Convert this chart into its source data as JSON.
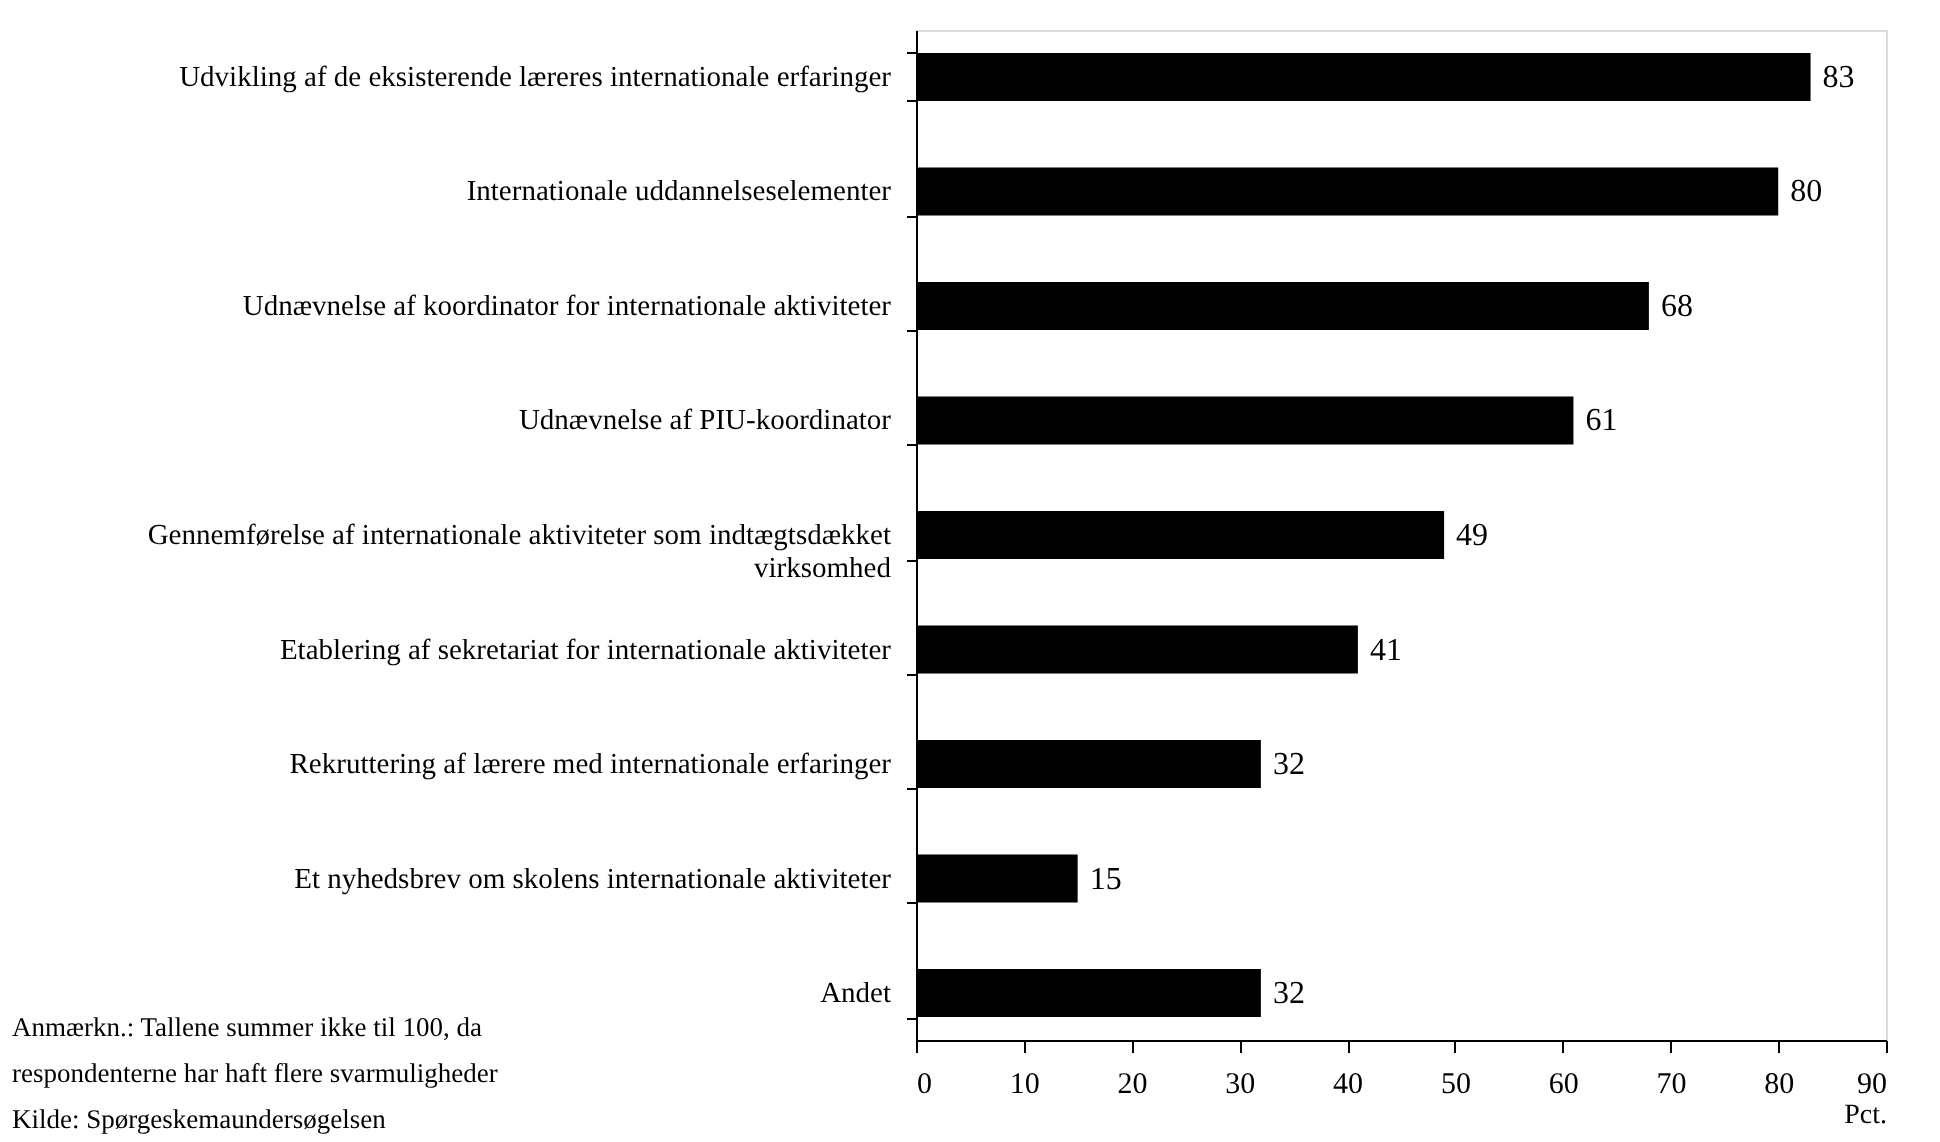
{
  "chart_data": {
    "type": "bar",
    "orientation": "horizontal",
    "categories": [
      "Udvikling af de eksisterende læreres internationale erfaringer",
      "Internationale uddannelseselementer",
      "Udnævnelse af koordinator for internationale aktiviteter",
      "Udnævnelse af PIU-koordinator",
      "Gennemførelse af internationale aktiviteter som indtægtsdækket virksomhed",
      "Etablering af sekretariat for internationale aktiviteter",
      "Rekruttering af lærere med internationale erfaringer",
      "Et nyhedsbrev om skolens internationale aktiviteter",
      "Andet"
    ],
    "values": [
      83,
      80,
      68,
      61,
      49,
      41,
      32,
      15,
      32
    ],
    "color": "#000000",
    "data_labels": true,
    "xlabel": "Pct.",
    "xlim": [
      0,
      90
    ],
    "xticks": [
      0,
      10,
      20,
      30,
      40,
      50,
      60,
      70,
      80,
      90
    ],
    "grid": false,
    "annotations": [
      "Anmærkn.: Tallene summer ikke til 100, da respondenterne har haft flere svarmuligheder",
      "Kilde: Spørgeskemaundersøgelsen"
    ]
  }
}
